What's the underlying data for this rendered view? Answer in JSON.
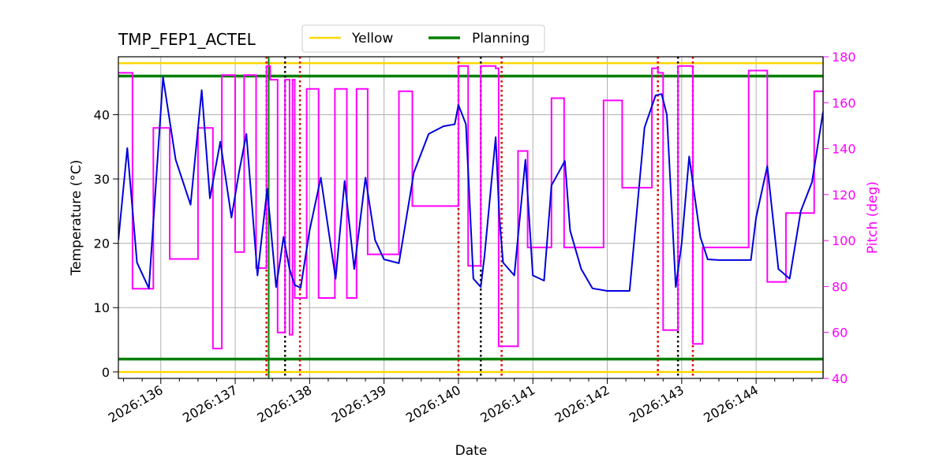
{
  "chart_data": {
    "type": "line",
    "title": "TMP_FEP1_ACTEL",
    "xlabel": "Date",
    "ylabel": "Temperature ($^\\circ$C)",
    "ylabel_display": "Temperature (°C)",
    "y2label": "Pitch (deg)",
    "xlim": [
      135.43,
      144.9
    ],
    "ylim": [
      -1,
      49
    ],
    "y2lim": [
      40,
      180
    ],
    "x_ticks": [
      136,
      137,
      138,
      139,
      140,
      141,
      142,
      143,
      144
    ],
    "x_tick_labels": [
      "2026:136",
      "2026:137",
      "2026:138",
      "2026:139",
      "2026:140",
      "2026:141",
      "2026:142",
      "2026:143",
      "2026:144"
    ],
    "y_ticks": [
      0,
      10,
      20,
      30,
      40
    ],
    "y_tick_labels": [
      "0",
      "10",
      "20",
      "30",
      "40"
    ],
    "y2_ticks": [
      40,
      60,
      80,
      100,
      120,
      140,
      160,
      180
    ],
    "y2_tick_labels": [
      "40",
      "60",
      "80",
      "100",
      "120",
      "140",
      "160",
      "180"
    ],
    "grid": true,
    "legend": {
      "placement": "top-center, above the axes",
      "entries": [
        {
          "label": "Yellow",
          "color": "#ffd700"
        },
        {
          "label": "Planning",
          "color": "#008000"
        }
      ]
    },
    "limits": [
      {
        "name": "Yellow",
        "values": [
          48,
          0
        ],
        "color": "#ffd700"
      },
      {
        "name": "Planning",
        "values": [
          46,
          2
        ],
        "color": "#008000"
      }
    ],
    "colors": {
      "temperature": "#0000dd",
      "pitch": "#ff00ff",
      "red_marker": "#dd0000",
      "black_marker": "#000000",
      "now_marker": "#008000"
    },
    "temperature_series": {
      "x": [
        135.43,
        135.55,
        135.68,
        135.84,
        136.03,
        136.2,
        136.4,
        136.55,
        136.66,
        136.8,
        136.95,
        137.05,
        137.15,
        137.3,
        137.43,
        137.55,
        137.6,
        137.65,
        137.73,
        137.8,
        137.88,
        138.0,
        138.15,
        138.35,
        138.47,
        138.6,
        138.75,
        138.88,
        139.0,
        139.2,
        139.4,
        139.6,
        139.8,
        139.95,
        140.0,
        140.05,
        140.1,
        140.2,
        140.3,
        140.35,
        140.5,
        140.55,
        140.6,
        140.75,
        140.9,
        141.0,
        141.15,
        141.25,
        141.43,
        141.5,
        141.65,
        141.8,
        142.0,
        142.3,
        142.5,
        142.65,
        142.73,
        142.8,
        142.92,
        143.0,
        143.1,
        143.25,
        143.35,
        143.5,
        143.8,
        143.93,
        144.0,
        144.15,
        144.3,
        144.45,
        144.6,
        144.75,
        144.9
      ],
      "y": [
        20.5,
        34.8,
        17,
        13,
        45.8,
        33,
        26,
        43.8,
        27,
        35.8,
        24,
        31,
        37,
        15,
        28.5,
        13.2,
        17,
        21,
        16,
        13.5,
        13.1,
        22,
        30.2,
        14.5,
        29.7,
        16,
        30.2,
        20.5,
        17.5,
        16.9,
        31,
        37,
        38.2,
        38.5,
        41.5,
        40,
        38.5,
        14.5,
        13.2,
        18,
        36.5,
        24,
        17,
        15,
        33,
        15,
        14.2,
        29,
        32.8,
        22,
        16,
        13,
        12.6,
        12.6,
        38,
        43,
        43.2,
        40,
        13.2,
        20,
        33.5,
        21,
        17.5,
        17.4,
        17.4,
        17.4,
        24,
        32,
        16,
        14.5,
        25,
        29.5,
        40.5
      ]
    },
    "pitch_series": {
      "x": [
        135.43,
        135.62,
        135.62,
        135.9,
        135.9,
        136.12,
        136.12,
        136.5,
        136.5,
        136.7,
        136.7,
        136.82,
        136.82,
        137.0,
        137.0,
        137.12,
        137.12,
        137.28,
        137.28,
        137.42,
        137.42,
        137.47,
        137.47,
        137.57,
        137.57,
        137.67,
        137.67,
        137.73,
        137.73,
        137.77,
        137.77,
        137.8,
        137.8,
        137.96,
        137.96,
        138.12,
        138.12,
        138.34,
        138.34,
        138.5,
        138.5,
        138.63,
        138.63,
        138.78,
        138.78,
        139.0,
        139.0,
        139.2,
        139.2,
        139.38,
        139.38,
        140.0,
        140.0,
        140.13,
        140.13,
        140.3,
        140.3,
        140.5,
        140.5,
        140.54,
        140.54,
        140.8,
        140.8,
        140.93,
        140.93,
        141.25,
        141.25,
        141.42,
        141.42,
        141.95,
        141.95,
        142.2,
        142.2,
        142.6,
        142.6,
        142.68,
        142.68,
        142.75,
        142.75,
        142.95,
        142.95,
        143.15,
        143.15,
        143.28,
        143.28,
        143.9,
        143.9,
        144.15,
        144.15,
        144.4,
        144.4,
        144.78,
        144.78,
        144.9
      ],
      "y": [
        173,
        173,
        79,
        79,
        149,
        149,
        92,
        92,
        149,
        149,
        53,
        53,
        172,
        172,
        95,
        95,
        172,
        172,
        88,
        88,
        176,
        176,
        170,
        170,
        60,
        60,
        170,
        170,
        59,
        59,
        170,
        170,
        75,
        75,
        166,
        166,
        75,
        75,
        166,
        166,
        75,
        75,
        166,
        166,
        94,
        94,
        94,
        94,
        165,
        165,
        115,
        115,
        176,
        176,
        89,
        89,
        176,
        176,
        175,
        175,
        54,
        54,
        139,
        139,
        97,
        97,
        162,
        162,
        97,
        97,
        161,
        161,
        123,
        123,
        175,
        175,
        173,
        173,
        61,
        61,
        176,
        176,
        55,
        55,
        97,
        97,
        174,
        174,
        82,
        82,
        112,
        112,
        165,
        165
      ]
    },
    "vertical_markers": [
      {
        "x": 137.42,
        "color": "#dd0000",
        "style": "dotted"
      },
      {
        "x": 137.67,
        "color": "#000000",
        "style": "dotted"
      },
      {
        "x": 137.87,
        "color": "#dd0000",
        "style": "dotted"
      },
      {
        "x": 140.0,
        "color": "#dd0000",
        "style": "dotted"
      },
      {
        "x": 140.3,
        "color": "#000000",
        "style": "dotted"
      },
      {
        "x": 140.58,
        "color": "#dd0000",
        "style": "dotted"
      },
      {
        "x": 142.68,
        "color": "#dd0000",
        "style": "dotted"
      },
      {
        "x": 142.95,
        "color": "#000000",
        "style": "dotted"
      },
      {
        "x": 143.15,
        "color": "#dd0000",
        "style": "dotted"
      },
      {
        "x": 137.45,
        "color": "#008000",
        "style": "solid"
      }
    ]
  }
}
